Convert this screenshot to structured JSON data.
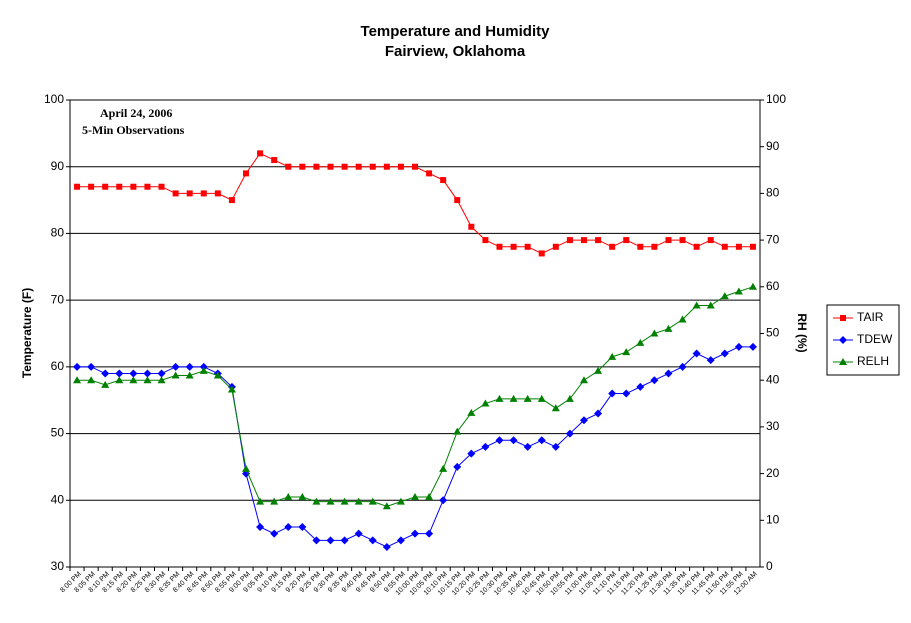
{
  "chart_data": {
    "type": "line",
    "title": "Temperature and Humidity",
    "subtitle": "Fairview, Oklahoma",
    "annotations": [
      "April 24, 2006",
      "5-Min Observations"
    ],
    "ylabel": "Temperature (F)",
    "y2label": "RH (%)",
    "categories": [
      "8:00 PM",
      "8:05 PM",
      "8:10 PM",
      "8:15 PM",
      "8:20 PM",
      "8:25 PM",
      "8:30 PM",
      "8:35 PM",
      "8:40 PM",
      "8:45 PM",
      "8:50 PM",
      "8:55 PM",
      "9:00 PM",
      "9:05 PM",
      "9:10 PM",
      "9:15 PM",
      "9:20 PM",
      "9:25 PM",
      "9:30 PM",
      "9:35 PM",
      "9:40 PM",
      "9:45 PM",
      "9:50 PM",
      "9:55 PM",
      "10:00 PM",
      "10:05 PM",
      "10:10 PM",
      "10:15 PM",
      "10:20 PM",
      "10:25 PM",
      "10:30 PM",
      "10:35 PM",
      "10:40 PM",
      "10:45 PM",
      "10:50 PM",
      "10:55 PM",
      "11:00 PM",
      "11:05 PM",
      "11:10 PM",
      "11:15 PM",
      "11:20 PM",
      "11:25 PM",
      "11:30 PM",
      "11:35 PM",
      "11:40 PM",
      "11:45 PM",
      "11:50 PM",
      "11:55 PM",
      "12:00 AM"
    ],
    "series": [
      {
        "name": "TAIR",
        "color": "#ff0000",
        "marker": "square",
        "values": [
          87,
          87,
          87,
          87,
          87,
          87,
          87,
          86,
          86,
          86,
          86,
          85,
          89,
          92,
          91,
          90,
          90,
          90,
          90,
          90,
          90,
          90,
          90,
          90,
          90,
          89,
          88,
          85,
          81,
          79,
          78,
          78,
          78,
          77,
          78,
          79,
          79,
          79,
          78,
          79,
          78,
          78,
          79,
          79,
          78,
          79,
          78,
          78,
          78
        ]
      },
      {
        "name": "TDEW",
        "color": "#0000ff",
        "marker": "diamond",
        "values": [
          60,
          60,
          59,
          59,
          59,
          59,
          59,
          60,
          60,
          60,
          59,
          57,
          44,
          36,
          35,
          36,
          36,
          34,
          34,
          34,
          35,
          34,
          33,
          34,
          35,
          35,
          40,
          45,
          47,
          48,
          49,
          49,
          48,
          49,
          48,
          50,
          52,
          53,
          56,
          56,
          57,
          58,
          59,
          60,
          62,
          61,
          62,
          63,
          63
        ]
      },
      {
        "name": "RELH",
        "color": "#008000",
        "marker": "triangle",
        "axis": "y2",
        "values": [
          40,
          40,
          39,
          40,
          40,
          40,
          40,
          41,
          41,
          42,
          41,
          38,
          21,
          14,
          14,
          15,
          15,
          14,
          14,
          14,
          14,
          14,
          13,
          14,
          15,
          15,
          21,
          29,
          33,
          35,
          36,
          36,
          36,
          36,
          34,
          36,
          40,
          42,
          45,
          46,
          48,
          50,
          51,
          53,
          56,
          56,
          58,
          59,
          60
        ]
      }
    ],
    "ylim": [
      30,
      100
    ],
    "yticks": [
      30,
      40,
      50,
      60,
      70,
      80,
      90,
      100
    ],
    "y2lim": [
      0,
      100
    ],
    "y2ticks": [
      0,
      10,
      20,
      30,
      40,
      50,
      60,
      70,
      80,
      90,
      100
    ],
    "grid": true,
    "legend": "right"
  }
}
